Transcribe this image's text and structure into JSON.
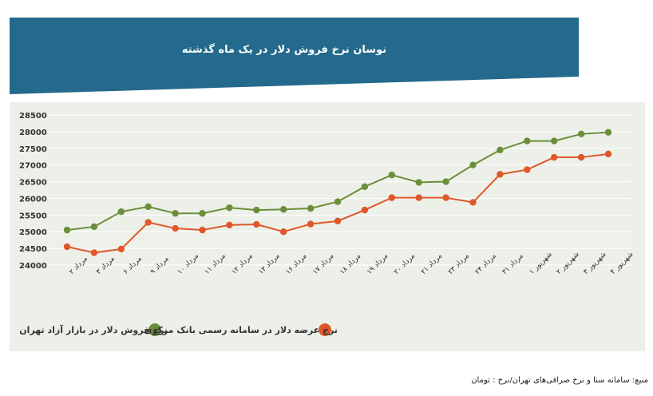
{
  "header": {
    "title": "نوسان نرخ فروش دلار در یک ماه گذشته",
    "bg_color": "#236a8c"
  },
  "source_note": "منبع: سامانه سنا و نرخ صرافی‌های تهران/نرخ : تومان",
  "chart_data": {
    "type": "line",
    "title": "نوسان نرخ فروش دلار در یک ماه گذشته",
    "xlabel": "",
    "ylabel": "",
    "ylim": [
      24000,
      28500
    ],
    "yticks": [
      24000,
      24500,
      25000,
      25500,
      26000,
      26500,
      27000,
      27500,
      28000,
      28500
    ],
    "grid": true,
    "legend_position": "bottom",
    "categories": [
      "مرداد ۲",
      "مرداد ۳",
      "مرداد ۶",
      "مرداد ۹",
      "مرداد ۱۰",
      "مرداد ۱۱",
      "مرداد ۱۲",
      "مرداد ۱۳",
      "مرداد ۱۶",
      "مرداد ۱۷",
      "مرداد ۱۸",
      "مرداد ۱۹",
      "مرداد ۲۰",
      "مرداد ۲۱",
      "مرداد ۲۳",
      "مرداد ۲۴",
      "مرداد ۳۱",
      "شهریور ۱",
      "شهریور ۲",
      "شهریور ۳",
      "شهریور ۴"
    ],
    "series": [
      {
        "name": "نرخ فروش دلار در بازار آزاد تهران",
        "color": "#6b8e3a",
        "values": [
          25050,
          25150,
          25600,
          25750,
          25550,
          25550,
          25720,
          25650,
          25670,
          25700,
          25900,
          26350,
          26700,
          26480,
          26500,
          27000,
          27450,
          27720,
          27720,
          27930,
          27980
        ]
      },
      {
        "name": "نرخ عرضه دلار در سامانه رسمی بانک مرکزی",
        "color": "#e0572b",
        "values": [
          24550,
          24370,
          24480,
          25280,
          25100,
          25050,
          25200,
          25220,
          25000,
          25230,
          25320,
          25650,
          26020,
          26020,
          26020,
          25880,
          26720,
          26860,
          27230,
          27230,
          27330
        ]
      }
    ]
  }
}
